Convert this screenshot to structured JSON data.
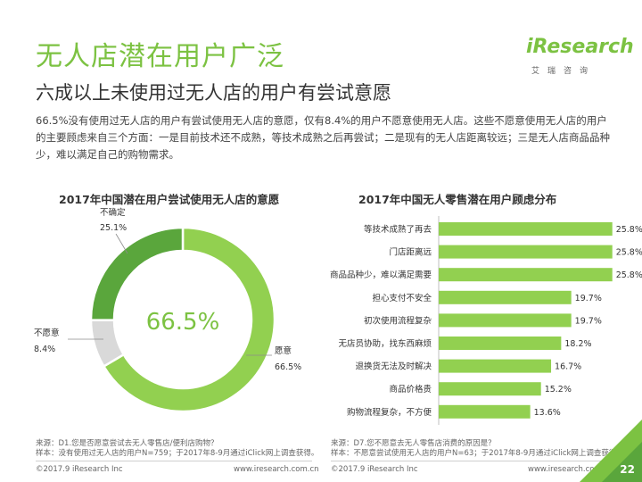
{
  "header": {
    "title": "无人店潜在用户广泛",
    "subtitle": "六成以上未使用过无人店的用户有尝试意愿",
    "intro": "66.5%没有使用过无人店的用户有尝试使用无人店的意愿，仅有8.4%的用户不愿意使用无人店。这些不愿意使用无人店的用户的主要顾虑来自三个方面：一是目前技术还不成熟，等技术成熟之后再尝试；二是现有的无人店距离较远；三是无人店商品品种少，难以满足自己的购物需求。"
  },
  "logo": {
    "text": "iResearch",
    "sub": "艾瑞咨询"
  },
  "colors": {
    "accent": "#7cc242",
    "dark_green": "#5aa63c",
    "grey": "#d9d9d9",
    "bar": "#92d050"
  },
  "chart_data": [
    {
      "type": "pie",
      "title": "2017年中国潜在用户尝试使用无人店的意愿",
      "center_label": "66.5%",
      "slices": [
        {
          "name": "愿意",
          "value": 66.5,
          "label": "66.5%"
        },
        {
          "name": "不愿意",
          "value": 8.4,
          "label": "8.4%"
        },
        {
          "name": "不确定",
          "value": 25.1,
          "label": "25.1%"
        }
      ]
    },
    {
      "type": "bar",
      "orientation": "horizontal",
      "title": "2017年中国无人零售潜在用户顾虑分布",
      "categories": [
        "等技术成熟了再去",
        "门店距离远",
        "商品品种少，难以满足需要",
        "担心支付不安全",
        "初次使用流程复杂",
        "无店员协助，找东西麻烦",
        "退换货无法及时解决",
        "商品价格贵",
        "购物流程复杂，不方便"
      ],
      "values": [
        25.8,
        25.8,
        25.8,
        19.7,
        19.7,
        18.2,
        16.7,
        15.2,
        13.6
      ],
      "value_labels": [
        "25.8%",
        "25.8%",
        "25.8%",
        "19.7%",
        "19.7%",
        "18.2%",
        "16.7%",
        "15.2%",
        "13.6%"
      ],
      "xlim": [
        0,
        30
      ]
    }
  ],
  "notes": {
    "left": [
      "来源：D1.您是否愿意尝试去无人零售店/便利店购物？",
      "样本：没有使用过无人店的用户N=759；于2017年8-9月通过iClick网上调查获得。"
    ],
    "right": [
      "来源：D7.您不愿意去无人零售店消费的原因是？",
      "样本：不愿意尝试使用无人店的用户N=63；于2017年8-9月通过iClick网上调查获得。"
    ]
  },
  "footer": {
    "copyright_left": "©2017.9 iResearch Inc",
    "url_left": "www.iresearch.com.cn",
    "copyright_right": "©2017.9 iResearch Inc",
    "url_right": "www.iresearch.com.cn",
    "page": "22"
  }
}
